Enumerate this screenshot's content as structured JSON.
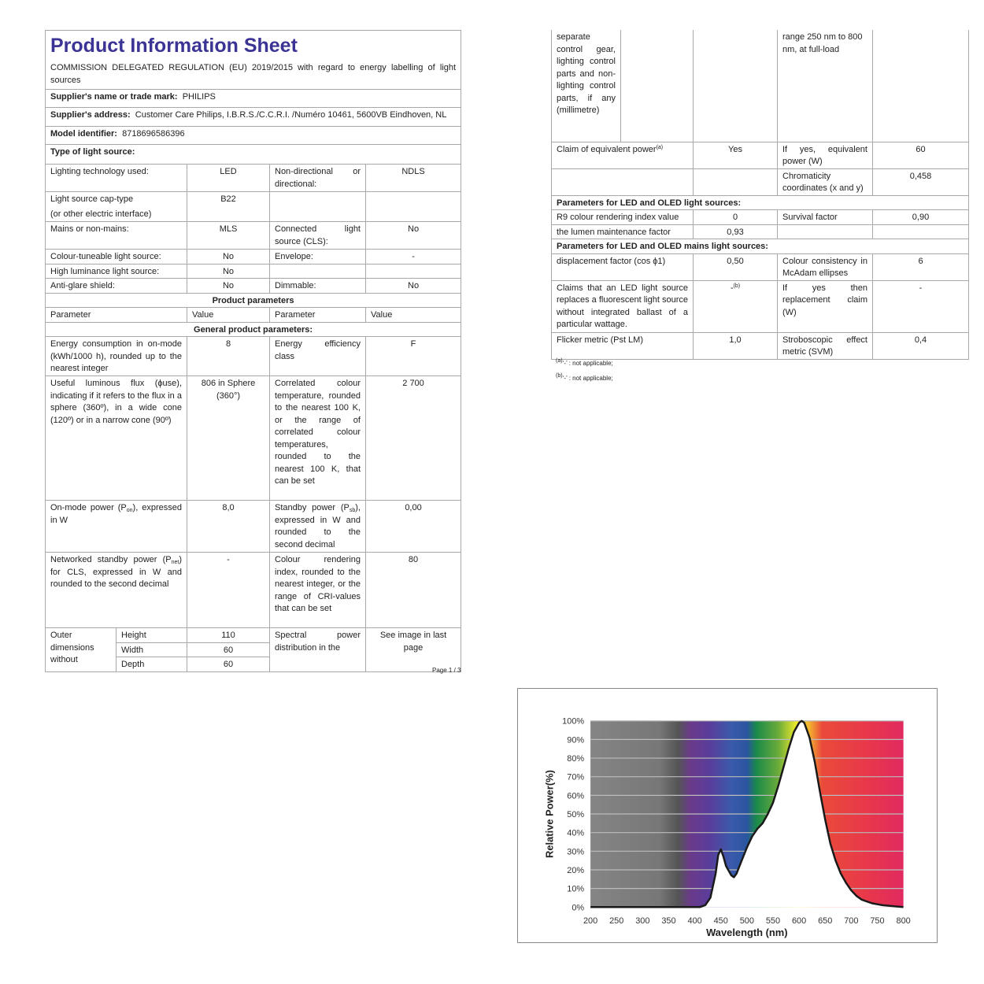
{
  "left": {
    "title": "Product Information Sheet",
    "regulation": "COMMISSION DELEGATED REGULATION (EU) 2019/2015 with regard to energy labelling of light sources",
    "supplier_label": "Supplier's name or trade mark:",
    "supplier_value": "PHILIPS",
    "address_label": "Supplier's address:",
    "address_value": "Customer Care Philips, I.B.R.S./C.C.R.I. /Numéro 10461, 5600VB Eindhoven, NL",
    "model_label": "Model identifier:",
    "model_value": "8718696586396",
    "type_label": "Type of light source:",
    "type_rows": [
      [
        "Lighting technology used:",
        "LED",
        "Non-directional or directional:",
        "NDLS"
      ],
      [
        "Light source cap-type",
        "B22",
        "",
        ""
      ],
      [
        "Mains or non-mains:",
        "MLS",
        "Connected light source (CLS):",
        "No"
      ],
      [
        "Colour-tuneable light source:",
        "No",
        "Envelope:",
        "-"
      ],
      [
        "High luminance light source:",
        "No",
        "",
        ""
      ],
      [
        "Anti-glare shield:",
        "No",
        "Dimmable:",
        "No"
      ]
    ],
    "cap_type_sub": "(or other electric interface)",
    "product_parameters": "Product parameters",
    "headers": [
      "Parameter",
      "Value",
      "Parameter",
      "Value"
    ],
    "general": "General product parameters:",
    "energy": [
      "Energy consumption in on-mode (kWh/1000 h), rounded up to the nearest integer",
      "8",
      "Energy efficiency class",
      "F"
    ],
    "flux": [
      "Useful luminous flux (ϕuse), indicating if it refers to the flux in a sphere (360º), in a wide cone (120º) or in a narrow cone (90º)",
      "806 in Sphere (360°)",
      "Correlated colour temperature, rounded to the nearest 100 K, or the range of correlated colour temperatures, rounded to the nearest 100 K, that can be set",
      "2 700"
    ],
    "onmode": {
      "pre": "On-mode power (P",
      "sub": "on",
      "post": "), expressed in W",
      "value": "8,0"
    },
    "standby": {
      "pre": "Standby power (P",
      "sub": "sb",
      "post": "), expressed in W and rounded to the second decimal",
      "value": "0,00"
    },
    "networked": {
      "pre": "Networked standby power (P",
      "sub": "net",
      "post": ") for CLS, expressed in W and rounded to the second decimal",
      "value": "-"
    },
    "cri": [
      "Colour rendering index, rounded to the nearest integer, or the range of CRI-values that can be set",
      "80"
    ],
    "outer": {
      "label": "Outer dimensions without",
      "dims": [
        [
          "Height",
          "110"
        ],
        [
          "Width",
          "60"
        ],
        [
          "Depth",
          "60"
        ]
      ],
      "spectral_label": "Spectral power distribution in the",
      "spectral_value": "See image in last page"
    },
    "page": "Page 1 / 3"
  },
  "right": {
    "top": {
      "a": "separate control gear, lighting control parts and non-lighting control parts, if any (millimetre)",
      "c": "range 250 nm to 800 nm, at full-load"
    },
    "claim": {
      "label": "Claim of equivalent power",
      "sup": "(a)",
      "value": "Yes",
      "p2": "If yes, equivalent power (W)",
      "v2": "60"
    },
    "chroma": [
      "Chromaticity coordinates (x and y)",
      "0,458"
    ],
    "section_led": "Parameters for LED and OLED light sources:",
    "r9": [
      "R9 colour rendering index value",
      "0",
      "Survival factor",
      "0,90"
    ],
    "lumen": [
      "the lumen maintenance factor",
      "0,93"
    ],
    "section_mains": "Parameters for LED and OLED mains light sources:",
    "displacement": [
      "displacement factor (cos ϕ1)",
      "0,50",
      "Colour consistency in McAdam ellipses",
      "6"
    ],
    "claims": {
      "label": "Claims that an LED light source replaces a fluorescent light source without integrated ballast of a particular wattage.",
      "value": "-",
      "sup": "(b)",
      "p2": "If yes then replacement claim (W)",
      "v2": "-"
    },
    "flicker": [
      "Flicker metric (Pst LM)",
      "1,0",
      "Stroboscopic effect metric (SVM)",
      "0,4"
    ],
    "footnotes": [
      {
        "sup": "(a)",
        "text": "‘-’ : not applicable;"
      },
      {
        "sup": "(b)",
        "text": "‘-’ : not applicable;"
      }
    ]
  },
  "chart_data": {
    "type": "area",
    "xlabel": "Wavelength (nm)",
    "ylabel": "Relative Power(%)",
    "xlim": [
      200,
      800
    ],
    "ylim": [
      0,
      100
    ],
    "xticks": [
      "200",
      "250",
      "300",
      "350",
      "400",
      "450",
      "500",
      "550",
      "600",
      "650",
      "700",
      "750",
      "800"
    ],
    "yticks": [
      "0%",
      "10%",
      "20%",
      "30%",
      "40%",
      "50%",
      "60%",
      "70%",
      "80%",
      "90%",
      "100%"
    ],
    "grid": true,
    "background": "visible spectrum gradient",
    "line_color": "#1a1a1a",
    "x": [
      200,
      410,
      420,
      430,
      440,
      445,
      450,
      455,
      460,
      470,
      475,
      480,
      490,
      500,
      510,
      520,
      530,
      540,
      550,
      560,
      570,
      580,
      590,
      600,
      605,
      610,
      620,
      630,
      640,
      650,
      660,
      670,
      680,
      690,
      700,
      710,
      720,
      730,
      740,
      750,
      760,
      780,
      800
    ],
    "y": [
      0,
      0,
      1,
      5,
      18,
      28,
      31,
      27,
      22,
      17,
      16,
      18,
      25,
      32,
      38,
      42,
      45,
      50,
      56,
      65,
      75,
      85,
      94,
      99,
      100,
      99,
      91,
      78,
      62,
      47,
      34,
      25,
      18,
      13,
      9,
      6,
      4,
      3,
      2,
      1.5,
      1,
      0.5,
      0
    ]
  }
}
